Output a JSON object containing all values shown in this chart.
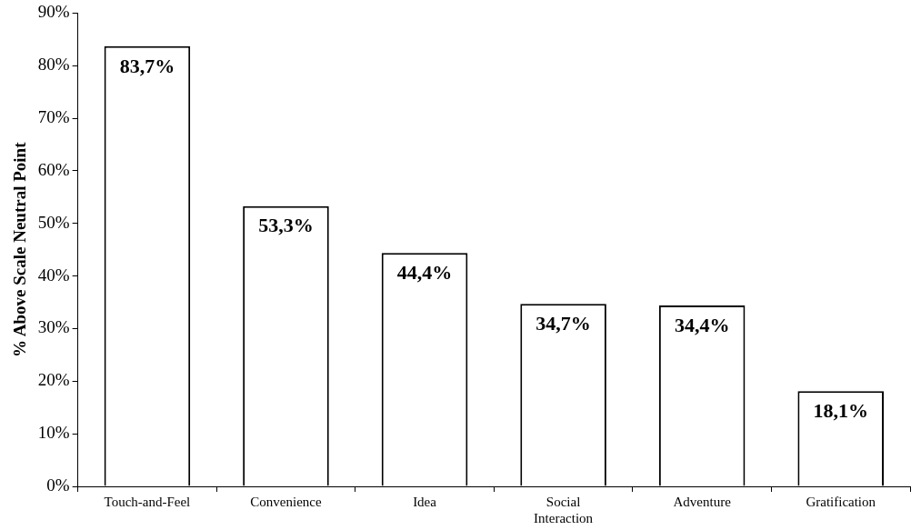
{
  "chart_data": {
    "type": "bar",
    "ylabel": "% Above Scale Neutral Point",
    "categories": [
      "Touch-and-Feel",
      "Convenience",
      "Idea",
      "Social Interaction",
      "Adventure",
      "Gratification"
    ],
    "values": [
      83.7,
      53.3,
      44.4,
      34.7,
      34.4,
      18.1
    ],
    "value_labels": [
      "83,7%",
      "53,3%",
      "44,4%",
      "34,7%",
      "34,4%",
      "18,1%"
    ],
    "color": "#ffffff",
    "ylim": [
      0,
      90
    ],
    "yticks": [
      {
        "value": 0,
        "label": "0%"
      },
      {
        "value": 10,
        "label": "10%"
      },
      {
        "value": 20,
        "label": "20%"
      },
      {
        "value": 30,
        "label": "30%"
      },
      {
        "value": 40,
        "label": "40%"
      },
      {
        "value": 50,
        "label": "50%"
      },
      {
        "value": 60,
        "label": "60%"
      },
      {
        "value": 70,
        "label": "70%"
      },
      {
        "value": 80,
        "label": "80%"
      },
      {
        "value": 90,
        "label": "90%"
      }
    ],
    "grid": false,
    "legend": false
  }
}
